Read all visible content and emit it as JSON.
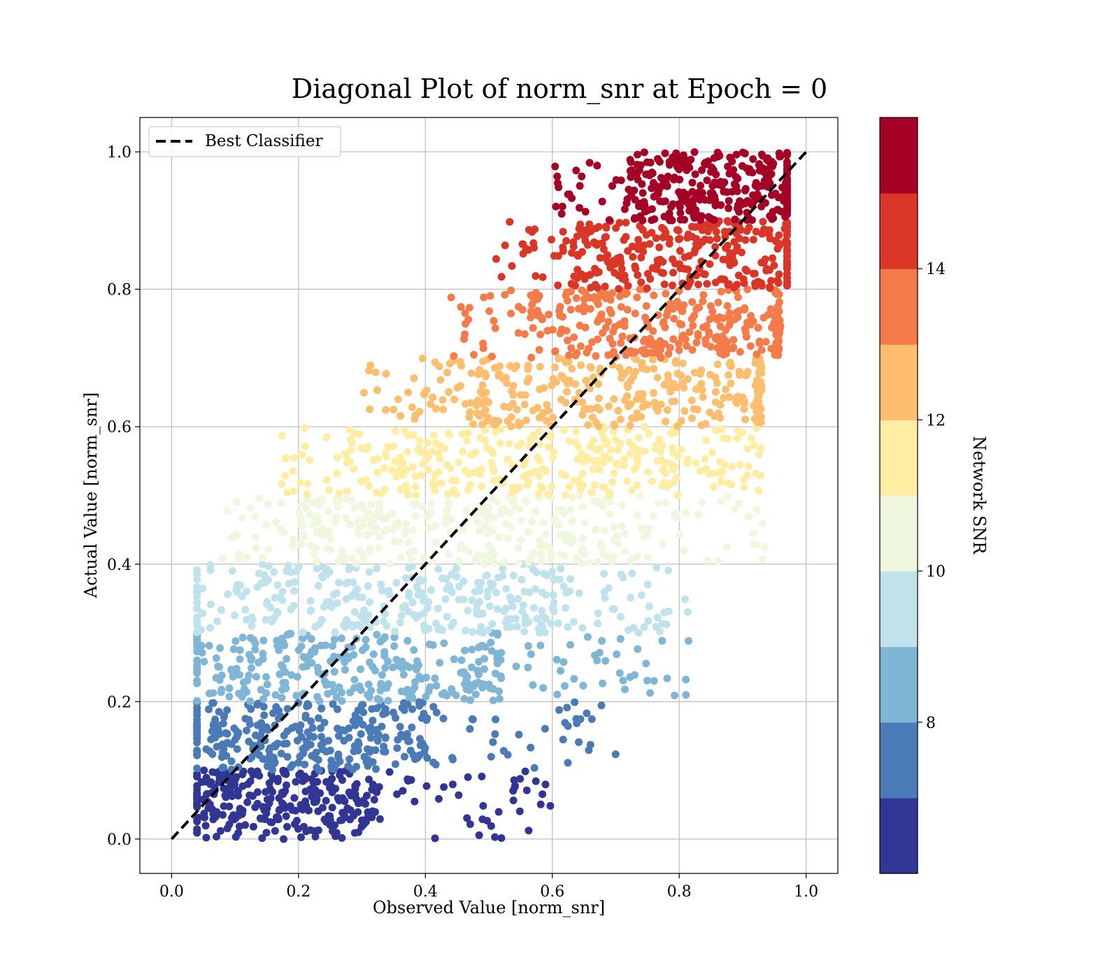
{
  "chart_data": {
    "type": "scatter",
    "title": "Diagonal Plot of norm_snr at Epoch = 0",
    "xlabel": "Observed Value [norm_snr]",
    "ylabel": "Actual Value [norm_snr]",
    "xlim": [
      -0.05,
      1.05
    ],
    "ylim": [
      -0.05,
      1.05
    ],
    "xticks": [
      "0.0",
      "0.2",
      "0.4",
      "0.6",
      "0.8",
      "1.0"
    ],
    "yticks": [
      "0.0",
      "0.2",
      "0.4",
      "0.6",
      "0.8",
      "1.0"
    ],
    "grid": true,
    "legend": {
      "position": "top-left",
      "label": "Best Classifier"
    },
    "reference_line": {
      "name": "Best Classifier",
      "style": "dashed",
      "color": "#000000",
      "x": [
        0.0,
        1.0
      ],
      "y": [
        0.0,
        1.0
      ]
    },
    "colorbar": {
      "label": "Network SNR",
      "range": [
        6.0,
        16.0
      ],
      "ticks": [
        "8",
        "10",
        "12",
        "14"
      ],
      "tick_values": [
        8,
        10,
        12,
        14
      ],
      "levels": [
        {
          "y_range": [
            0.0,
            0.1
          ],
          "color": "#313695"
        },
        {
          "y_range": [
            0.1,
            0.2
          ],
          "color": "#4a7bb7"
        },
        {
          "y_range": [
            0.2,
            0.3
          ],
          "color": "#7fb5d5"
        },
        {
          "y_range": [
            0.3,
            0.4
          ],
          "color": "#bfe2ec"
        },
        {
          "y_range": [
            0.4,
            0.5
          ],
          "color": "#eff8de"
        },
        {
          "y_range": [
            0.5,
            0.6
          ],
          "color": "#feeda2"
        },
        {
          "y_range": [
            0.6,
            0.7
          ],
          "color": "#fdbf6f"
        },
        {
          "y_range": [
            0.7,
            0.8
          ],
          "color": "#f57c4a"
        },
        {
          "y_range": [
            0.8,
            0.9
          ],
          "color": "#da3628"
        },
        {
          "y_range": [
            0.9,
            1.0
          ],
          "color": "#a50026"
        }
      ]
    },
    "band_density": [
      {
        "y_range": [
          0.0,
          0.1
        ],
        "core_x": [
          0.05,
          0.33
        ],
        "tail_x": 0.6
      },
      {
        "y_range": [
          0.1,
          0.2
        ],
        "core_x": [
          0.06,
          0.4
        ],
        "tail_x": 0.7
      },
      {
        "y_range": [
          0.2,
          0.3
        ],
        "core_x": [
          0.07,
          0.52
        ],
        "tail_x": 0.82
      },
      {
        "y_range": [
          0.3,
          0.4
        ],
        "core_x": [
          0.1,
          0.62
        ],
        "tail_x": 0.82
      },
      {
        "y_range": [
          0.4,
          0.5
        ],
        "core_x": [
          0.2,
          0.72
        ],
        "tail_x": 0.94
      },
      {
        "y_range": [
          0.5,
          0.6
        ],
        "core_x": [
          0.28,
          0.82
        ],
        "tail_x": 0.93
      },
      {
        "y_range": [
          0.6,
          0.7
        ],
        "core_x": [
          0.42,
          0.92
        ],
        "tail_x": 0.92
      },
      {
        "y_range": [
          0.7,
          0.8
        ],
        "core_x": [
          0.56,
          0.95
        ],
        "tail_x": 0.96
      },
      {
        "y_range": [
          0.8,
          0.9
        ],
        "core_x": [
          0.63,
          0.97
        ],
        "tail_x": 0.97
      },
      {
        "y_range": [
          0.9,
          1.0
        ],
        "core_x": [
          0.72,
          0.97
        ],
        "tail_x": 0.97
      }
    ]
  }
}
